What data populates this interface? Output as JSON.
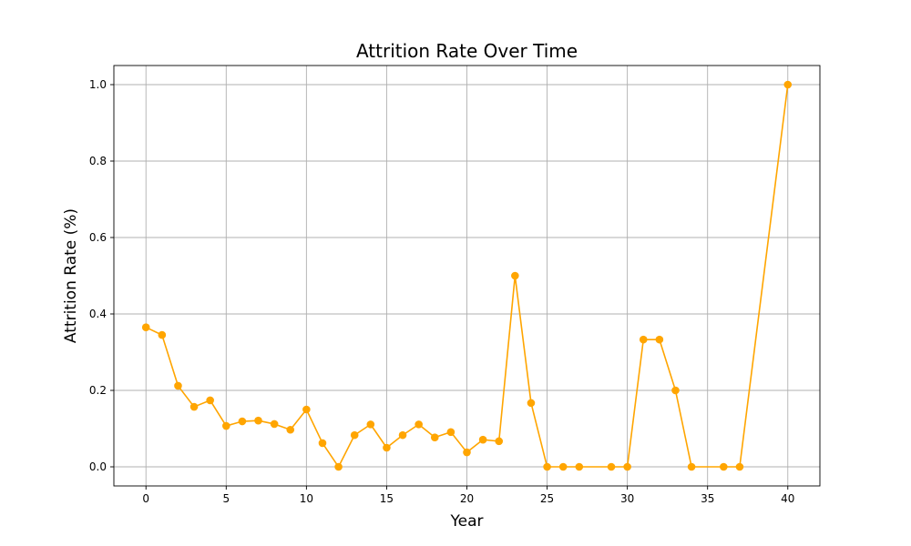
{
  "chart_data": {
    "type": "line",
    "title": "Attrition Rate Over Time",
    "xlabel": "Year",
    "ylabel": "Attrition Rate (%)",
    "xlim": [
      -2,
      42
    ],
    "ylim": [
      -0.05,
      1.05
    ],
    "xticks": [
      0,
      5,
      10,
      15,
      20,
      25,
      30,
      35,
      40
    ],
    "xtick_labels": [
      "0",
      "5",
      "10",
      "15",
      "20",
      "25",
      "30",
      "35",
      "40"
    ],
    "yticks": [
      0.0,
      0.2,
      0.4,
      0.6,
      0.8,
      1.0
    ],
    "ytick_labels": [
      "0.0",
      "0.2",
      "0.4",
      "0.6",
      "0.8",
      "1.0"
    ],
    "grid": true,
    "color": "#FFA500",
    "series": [
      {
        "x": [
          0,
          1,
          2,
          3,
          4,
          5,
          6,
          7,
          8,
          9,
          10,
          11,
          12,
          13,
          14,
          15,
          16,
          17,
          18,
          19,
          20,
          21,
          22,
          23,
          24,
          25,
          26,
          27,
          29,
          30,
          31,
          32,
          33,
          34,
          36,
          37,
          40
        ],
        "y": [
          0.365,
          0.345,
          0.212,
          0.157,
          0.174,
          0.107,
          0.119,
          0.121,
          0.112,
          0.097,
          0.15,
          0.062,
          0.0,
          0.083,
          0.111,
          0.05,
          0.083,
          0.111,
          0.077,
          0.091,
          0.038,
          0.071,
          0.067,
          0.5,
          0.167,
          0.0,
          0.0,
          0.0,
          0.0,
          0.0,
          0.333,
          0.333,
          0.2,
          0.0,
          0.0,
          0.0,
          1.0
        ]
      }
    ]
  }
}
